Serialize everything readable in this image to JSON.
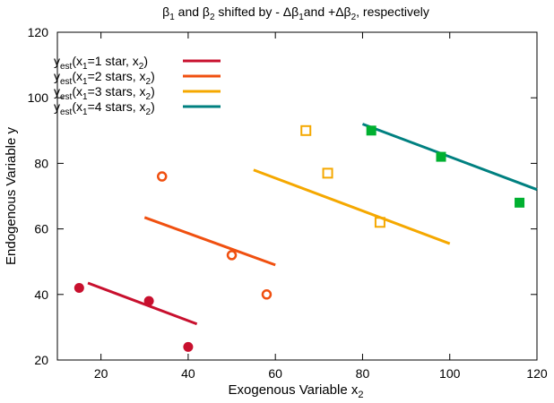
{
  "chart_data": {
    "type": "scatter",
    "title": {
      "b1_sym": "β",
      "b1_sub": "1",
      "mid1": " and ",
      "b2_sym": "β",
      "b2_sub": "2",
      "mid2": " shifted by - Δβ",
      "d1_sub": "1",
      "mid3": "and +Δβ",
      "d2_sub": "2",
      "tail": ", respectively"
    },
    "xlabel": {
      "main": "Exogenous Variable x",
      "sub": "2"
    },
    "ylabel": "Endogenous Variable y",
    "xlim": [
      10,
      120
    ],
    "ylim": [
      20,
      120
    ],
    "xticks": [
      "20",
      "40",
      "60",
      "80",
      "100",
      "120"
    ],
    "yticks": [
      "20",
      "40",
      "60",
      "80",
      "100",
      "120"
    ],
    "grid": false,
    "legend_position": "top-left",
    "legend": [
      {
        "label": [
          "y",
          "est",
          "(x",
          "1",
          "=1 star,   x",
          "2",
          ")"
        ],
        "color": "#c8102e"
      },
      {
        "label": [
          "y",
          "est",
          "(x",
          "1",
          "=2 stars, x",
          "2",
          ")"
        ],
        "color": "#f05010"
      },
      {
        "label": [
          "y",
          "est",
          "(x",
          "1",
          "=3 stars, x",
          "2",
          ")"
        ],
        "color": "#f5a800"
      },
      {
        "label": [
          "y",
          "est",
          "(x",
          "1",
          "=4 stars, x",
          "2",
          ")"
        ],
        "color": "#008080"
      }
    ],
    "series": [
      {
        "color": "#c8102e",
        "marker": "filled-circle",
        "points": [
          [
            15,
            42
          ],
          [
            31,
            38
          ],
          [
            40,
            24
          ]
        ],
        "line": [
          [
            17,
            43.5
          ],
          [
            42,
            31
          ]
        ]
      },
      {
        "color": "#f05010",
        "marker": "open-circle",
        "points": [
          [
            34,
            76
          ],
          [
            50,
            52
          ],
          [
            58,
            40
          ]
        ],
        "line": [
          [
            30,
            63.5
          ],
          [
            60,
            49
          ]
        ]
      },
      {
        "color": "#f5a800",
        "marker": "open-square",
        "points": [
          [
            67,
            90
          ],
          [
            72,
            77
          ],
          [
            84,
            62
          ]
        ],
        "line": [
          [
            55,
            78
          ],
          [
            100,
            55.5
          ]
        ]
      },
      {
        "color": "#00b030",
        "line_color": "#008080",
        "marker": "filled-square",
        "points": [
          [
            82,
            90
          ],
          [
            98,
            82
          ],
          [
            116,
            68
          ]
        ],
        "line": [
          [
            80,
            92
          ],
          [
            120,
            72
          ]
        ]
      }
    ]
  }
}
